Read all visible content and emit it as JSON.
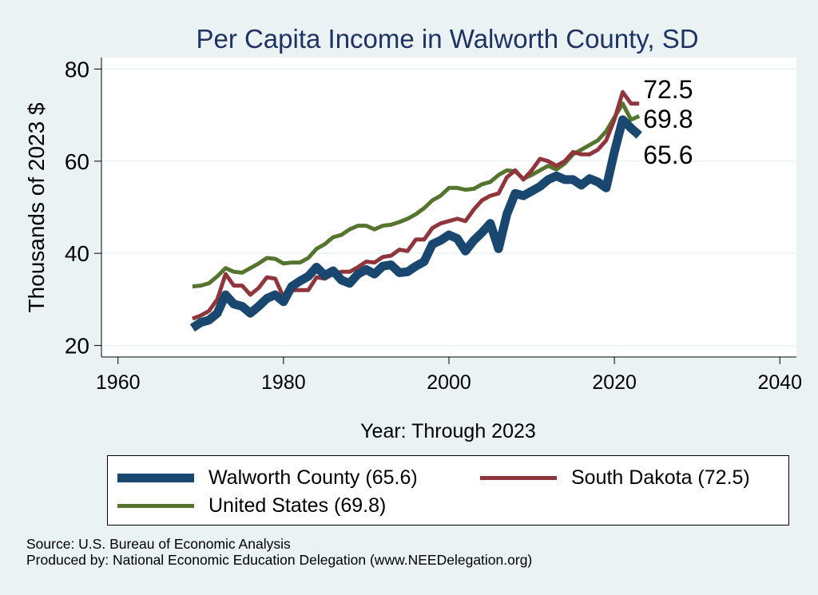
{
  "chart_data": {
    "type": "line",
    "title": "Per Capita Income in Walworth County, SD",
    "xlabel": "Year: Through 2023",
    "ylabel": "Thousands of 2023 $",
    "xlim": [
      1958,
      2042
    ],
    "ylim": [
      17.5,
      82.5
    ],
    "xticks": [
      1960,
      1980,
      2000,
      2020,
      2040
    ],
    "yticks": [
      20,
      40,
      60,
      80
    ],
    "grid": true,
    "x": [
      1969,
      1970,
      1971,
      1972,
      1973,
      1974,
      1975,
      1976,
      1977,
      1978,
      1979,
      1980,
      1981,
      1982,
      1983,
      1984,
      1985,
      1986,
      1987,
      1988,
      1989,
      1990,
      1991,
      1992,
      1993,
      1994,
      1995,
      1996,
      1997,
      1998,
      1999,
      2000,
      2001,
      2002,
      2003,
      2004,
      2005,
      2006,
      2007,
      2008,
      2009,
      2010,
      2011,
      2012,
      2013,
      2014,
      2015,
      2016,
      2017,
      2018,
      2019,
      2020,
      2021,
      2022,
      2023
    ],
    "series": [
      {
        "name": "Walworth County",
        "color": "#1a476f",
        "values": [
          23.8,
          25.0,
          25.5,
          27.0,
          31.0,
          29.0,
          28.5,
          27.0,
          28.5,
          30.2,
          31.0,
          29.5,
          32.8,
          34.0,
          35.0,
          37.0,
          35.2,
          36.2,
          34.2,
          33.5,
          35.5,
          36.5,
          35.5,
          37.2,
          37.5,
          35.8,
          36.0,
          37.2,
          38.2,
          42.0,
          42.8,
          44.0,
          43.2,
          40.5,
          42.8,
          44.5,
          46.5,
          41.0,
          48.5,
          53.0,
          52.5,
          53.5,
          54.5,
          56.0,
          56.8,
          56.0,
          56.0,
          54.8,
          56.2,
          55.5,
          54.2,
          62.0,
          69.0,
          67.2,
          65.6
        ]
      },
      {
        "name": "South Dakota",
        "color": "#90353b",
        "values": [
          25.8,
          26.5,
          27.5,
          30.0,
          35.5,
          33.0,
          33.0,
          31.0,
          32.5,
          34.8,
          34.5,
          30.5,
          32.0,
          32.0,
          32.0,
          34.8,
          34.5,
          35.5,
          36.0,
          36.0,
          37.0,
          38.2,
          38.0,
          39.2,
          39.5,
          40.8,
          40.5,
          43.0,
          43.0,
          45.5,
          46.5,
          47.0,
          47.5,
          47.0,
          49.5,
          51.5,
          52.5,
          53.0,
          56.5,
          58.0,
          56.0,
          58.0,
          60.5,
          60.0,
          59.0,
          60.0,
          62.0,
          61.5,
          61.5,
          62.5,
          64.5,
          69.0,
          75.0,
          72.5,
          72.5
        ]
      },
      {
        "name": "United States",
        "color": "#55752f",
        "values": [
          32.8,
          33.0,
          33.5,
          35.0,
          36.8,
          36.0,
          35.8,
          36.8,
          37.8,
          39.0,
          38.8,
          37.8,
          38.0,
          38.0,
          39.0,
          41.0,
          42.0,
          43.5,
          44.0,
          45.2,
          46.0,
          46.0,
          45.2,
          46.0,
          46.2,
          46.8,
          47.5,
          48.5,
          49.8,
          51.5,
          52.5,
          54.2,
          54.2,
          53.8,
          54.0,
          55.0,
          55.5,
          57.0,
          58.0,
          57.8,
          56.2,
          57.0,
          58.0,
          59.0,
          58.2,
          59.5,
          61.5,
          62.5,
          63.5,
          64.5,
          66.5,
          69.5,
          72.5,
          69.0,
          69.8
        ]
      }
    ],
    "end_labels": [
      "72.5",
      "69.8",
      "65.6"
    ],
    "legend": {
      "position": "bottom",
      "entries": [
        "Walworth County (65.6)",
        "South Dakota (72.5)",
        "United States (69.8)"
      ]
    }
  },
  "footer": {
    "source": "Source: U.S. Bureau of Economic Analysis",
    "produced_by": "Produced by: National Economic Education Delegation (www.NEEDelegation.org)"
  }
}
